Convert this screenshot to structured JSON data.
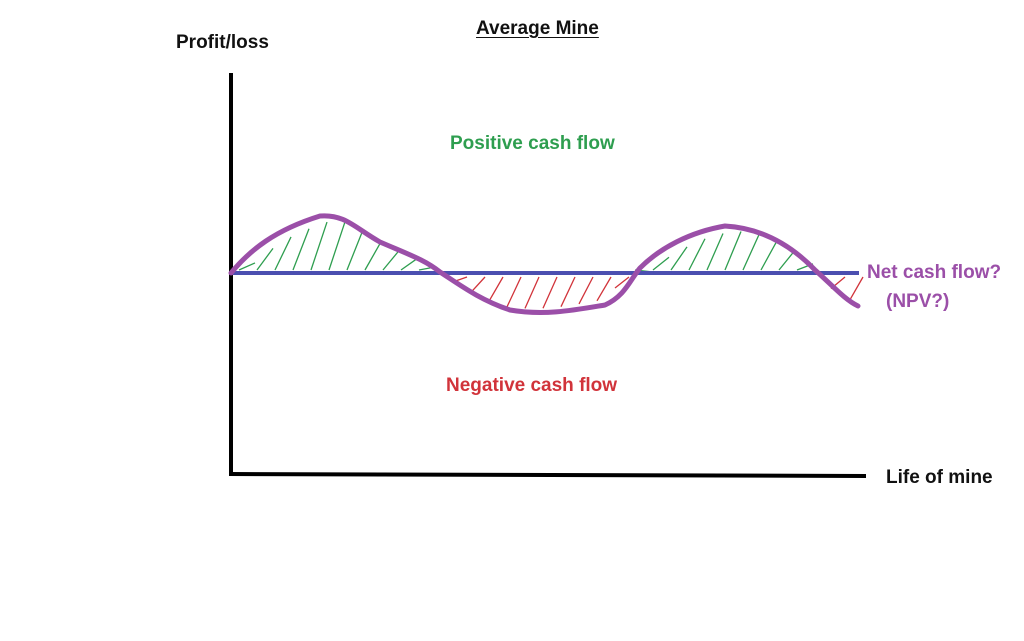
{
  "title": "Average Mine",
  "axes": {
    "y_label": "Profit/loss",
    "x_label": "Life of mine"
  },
  "regions": {
    "positive_label": "Positive cash flow",
    "negative_label": "Negative cash flow"
  },
  "annotation": {
    "net_cash_flow": "Net cash flow?",
    "npv": "(NPV?)"
  },
  "colors": {
    "axis": "#000000",
    "baseline": "#4b4fb0",
    "curve": "#9b4fa8",
    "positive": "#2e9e4f",
    "negative": "#d1333a",
    "annotation": "#9b4fa8",
    "text": "#111111"
  }
}
